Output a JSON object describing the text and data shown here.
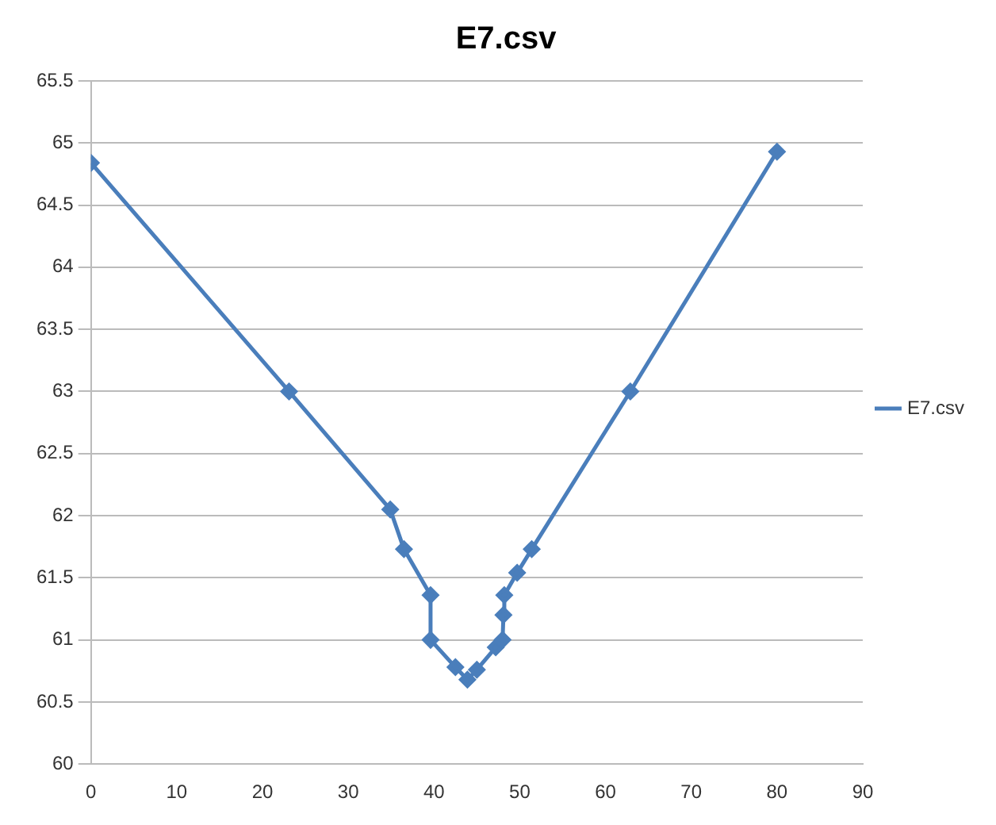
{
  "chart_data": {
    "type": "line",
    "title": "E7.csv",
    "x": [
      0,
      23.1,
      34.9,
      36.5,
      39.6,
      39.6,
      42.5,
      43.9,
      45.0,
      47.2,
      48.0,
      48.1,
      48.2,
      49.7,
      51.4,
      62.9,
      80.0
    ],
    "series": [
      {
        "name": "E7.csv",
        "color": "#4a7ebb",
        "values": [
          64.84,
          63.0,
          62.05,
          61.73,
          61.36,
          61.0,
          60.78,
          60.68,
          60.76,
          60.94,
          61.0,
          61.2,
          61.36,
          61.54,
          61.73,
          63.0,
          64.93
        ]
      }
    ],
    "xlim": [
      0,
      90
    ],
    "xticks": [
      0,
      10,
      20,
      30,
      40,
      50,
      60,
      70,
      80,
      90
    ],
    "ylim": [
      60,
      65.5
    ],
    "yticks": [
      60,
      60.5,
      61,
      61.5,
      62,
      62.5,
      63,
      63.5,
      64,
      64.5,
      65,
      65.5
    ],
    "grid": "y",
    "legend": "right",
    "marker": "diamond",
    "line_style": "solid"
  }
}
